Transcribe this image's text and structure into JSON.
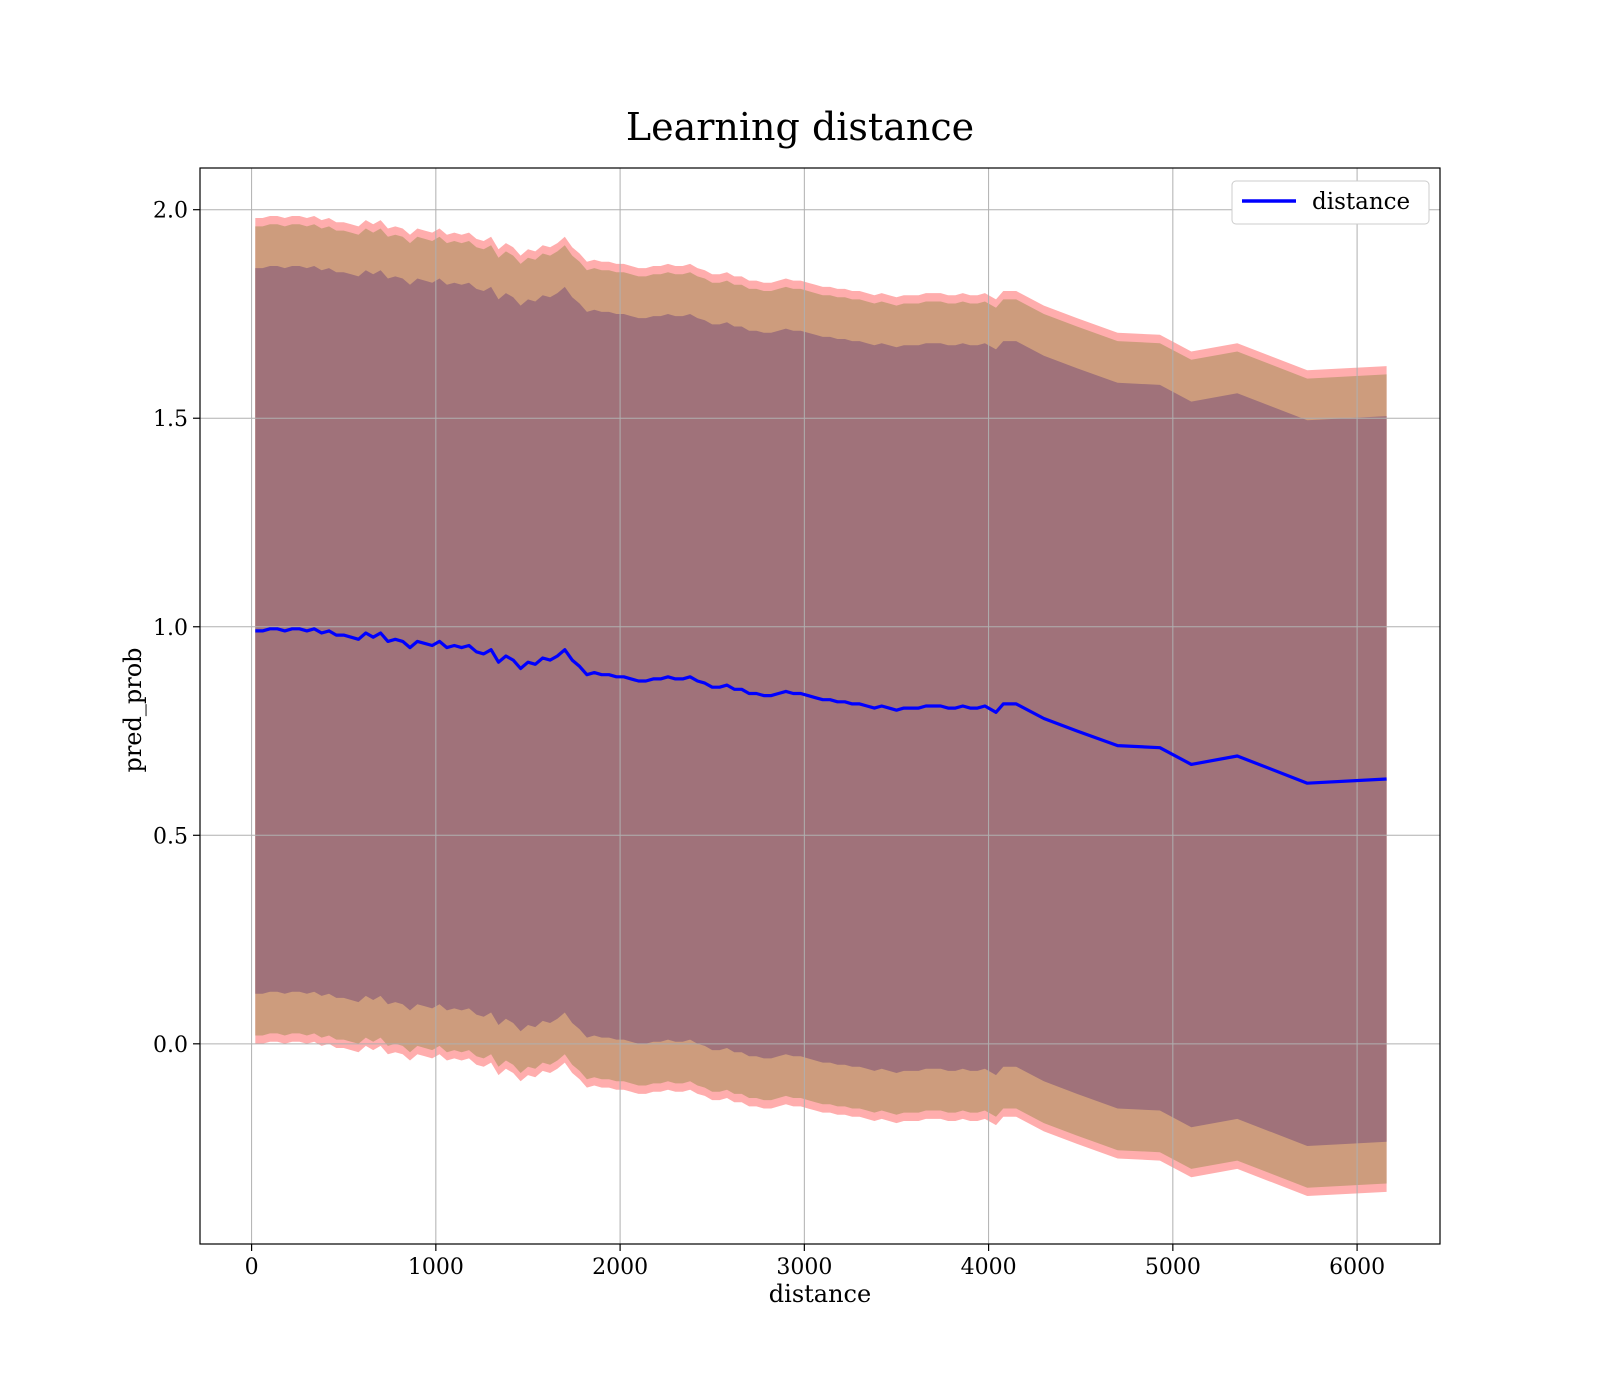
{
  "chart_data": {
    "type": "line",
    "title": "Learning distance",
    "xlabel": "distance",
    "ylabel": "pred_prob",
    "xlim": [
      -280,
      6450
    ],
    "ylim": [
      -0.48,
      2.1
    ],
    "xticks": [
      0,
      1000,
      2000,
      3000,
      4000,
      5000,
      6000
    ],
    "yticks": [
      0.0,
      0.5,
      1.0,
      1.5,
      2.0
    ],
    "xtick_labels": [
      "0",
      "1000",
      "2000",
      "3000",
      "4000",
      "5000",
      "6000"
    ],
    "ytick_labels": [
      "0.0",
      "0.5",
      "1.0",
      "1.5",
      "2.0"
    ],
    "grid": true,
    "legend_position": "top-right",
    "series": [
      {
        "name": "distance",
        "color": "#0000ff",
        "x": [
          20,
          60,
          100,
          140,
          180,
          220,
          260,
          300,
          340,
          380,
          420,
          460,
          500,
          540,
          580,
          620,
          660,
          700,
          740,
          780,
          820,
          860,
          900,
          940,
          980,
          1020,
          1060,
          1100,
          1140,
          1180,
          1220,
          1260,
          1300,
          1340,
          1380,
          1420,
          1460,
          1500,
          1540,
          1580,
          1620,
          1660,
          1700,
          1740,
          1780,
          1820,
          1860,
          1900,
          1940,
          1980,
          2020,
          2060,
          2100,
          2140,
          2180,
          2220,
          2260,
          2300,
          2340,
          2380,
          2420,
          2460,
          2500,
          2540,
          2580,
          2620,
          2660,
          2700,
          2740,
          2780,
          2820,
          2860,
          2900,
          2940,
          2980,
          3020,
          3060,
          3100,
          3140,
          3180,
          3220,
          3260,
          3300,
          3340,
          3380,
          3420,
          3460,
          3500,
          3540,
          3580,
          3620,
          3660,
          3700,
          3740,
          3780,
          3820,
          3860,
          3900,
          3940,
          3980,
          4040,
          4080,
          4150,
          4300,
          4480,
          4700,
          4930,
          5100,
          5350,
          5730,
          6160
        ],
        "values": [
          0.99,
          0.99,
          0.995,
          0.995,
          0.99,
          0.995,
          0.995,
          0.99,
          0.995,
          0.985,
          0.99,
          0.98,
          0.98,
          0.975,
          0.97,
          0.985,
          0.975,
          0.985,
          0.965,
          0.97,
          0.965,
          0.95,
          0.965,
          0.96,
          0.955,
          0.965,
          0.95,
          0.955,
          0.95,
          0.955,
          0.94,
          0.935,
          0.945,
          0.915,
          0.93,
          0.92,
          0.9,
          0.915,
          0.91,
          0.925,
          0.92,
          0.93,
          0.945,
          0.92,
          0.905,
          0.885,
          0.89,
          0.885,
          0.885,
          0.88,
          0.88,
          0.875,
          0.87,
          0.87,
          0.875,
          0.875,
          0.88,
          0.875,
          0.875,
          0.88,
          0.87,
          0.865,
          0.855,
          0.855,
          0.86,
          0.85,
          0.85,
          0.84,
          0.84,
          0.835,
          0.835,
          0.84,
          0.845,
          0.84,
          0.84,
          0.835,
          0.83,
          0.825,
          0.825,
          0.82,
          0.82,
          0.815,
          0.815,
          0.81,
          0.805,
          0.81,
          0.805,
          0.8,
          0.805,
          0.805,
          0.805,
          0.81,
          0.81,
          0.81,
          0.805,
          0.805,
          0.81,
          0.805,
          0.805,
          0.81,
          0.795,
          0.815,
          0.815,
          0.78,
          0.75,
          0.715,
          0.71,
          0.67,
          0.69,
          0.625,
          0.635
        ]
      }
    ],
    "bands": [
      {
        "name": "",
        "color": "#ff9999",
        "half_width": 0.99,
        "opacity": 0.8
      },
      {
        "name": "",
        "color": "#c89a78",
        "half_width": 0.97,
        "opacity": 0.9
      },
      {
        "name": "",
        "color": "#a0727a",
        "half_width": 0.87,
        "opacity": 1.0
      }
    ]
  }
}
